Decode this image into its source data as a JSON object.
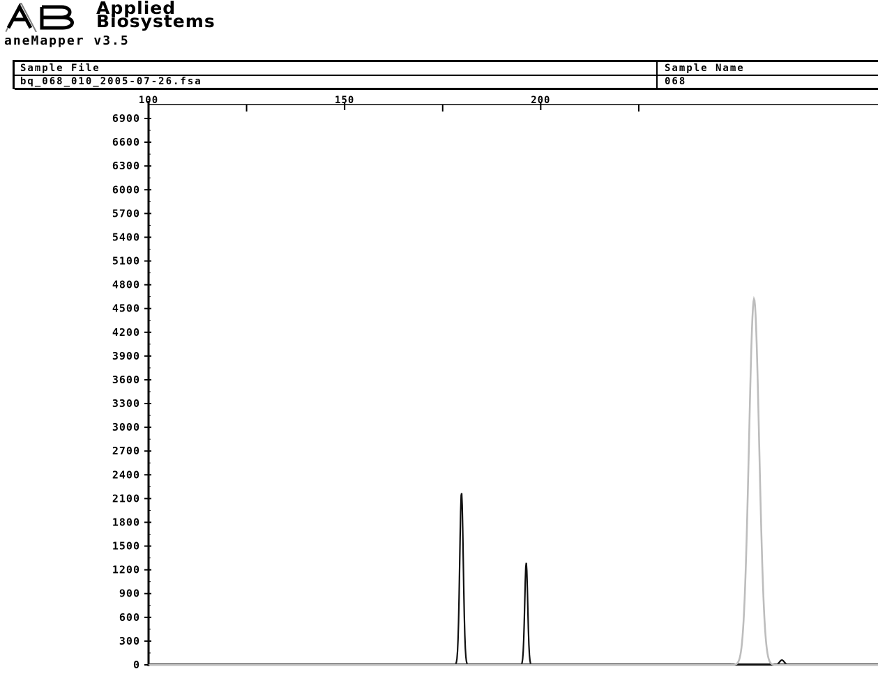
{
  "brand": {
    "logo_icon": "applied-biosystems-ab-logo",
    "line1": "Applied",
    "line2": "Biosystems"
  },
  "app_version": "aneMapper v3.5",
  "header": {
    "sample_file_label": "Sample File",
    "sample_file_value": "bq_068_010_2005-07-26.fsa",
    "sample_name_label": "Sample Name",
    "sample_name_value": "068"
  },
  "chart_data": {
    "type": "line",
    "title": "",
    "xlabel": "",
    "ylabel": "",
    "xlim": [
      100,
      286
    ],
    "ylim": [
      0,
      6900
    ],
    "x_ticks_labeled": [
      100,
      150,
      200
    ],
    "x_tick_labels": [
      "100",
      "150",
      "200"
    ],
    "x_ticks_minor": [
      125,
      175,
      225
    ],
    "y_ticks": [
      0,
      300,
      600,
      900,
      1200,
      1500,
      1800,
      2100,
      2400,
      2700,
      3000,
      3300,
      3600,
      3900,
      4200,
      4500,
      4800,
      5100,
      5400,
      5700,
      6000,
      6300,
      6600,
      6900
    ],
    "y_tick_labels": [
      "0",
      "300",
      "600",
      "900",
      "1200",
      "1500",
      "1800",
      "2100",
      "2400",
      "2700",
      "3000",
      "3300",
      "3600",
      "3900",
      "4200",
      "4500",
      "4800",
      "5100",
      "5400",
      "5700",
      "6000",
      "6300",
      "6600",
      "6900"
    ],
    "grid": false,
    "series": [
      {
        "color": "#111111",
        "peaks": [
          {
            "x": 179.8,
            "height": 2180,
            "width": 0.45
          },
          {
            "x": 196.3,
            "height": 1290,
            "width": 0.38
          },
          {
            "x": 261.5,
            "height": 60,
            "width": 0.6
          }
        ]
      },
      {
        "color": "#bdbdbd",
        "peaks": [
          {
            "x": 254.4,
            "height": 4620,
            "width": 1.3
          }
        ]
      }
    ],
    "baseline_color": "#111111"
  }
}
